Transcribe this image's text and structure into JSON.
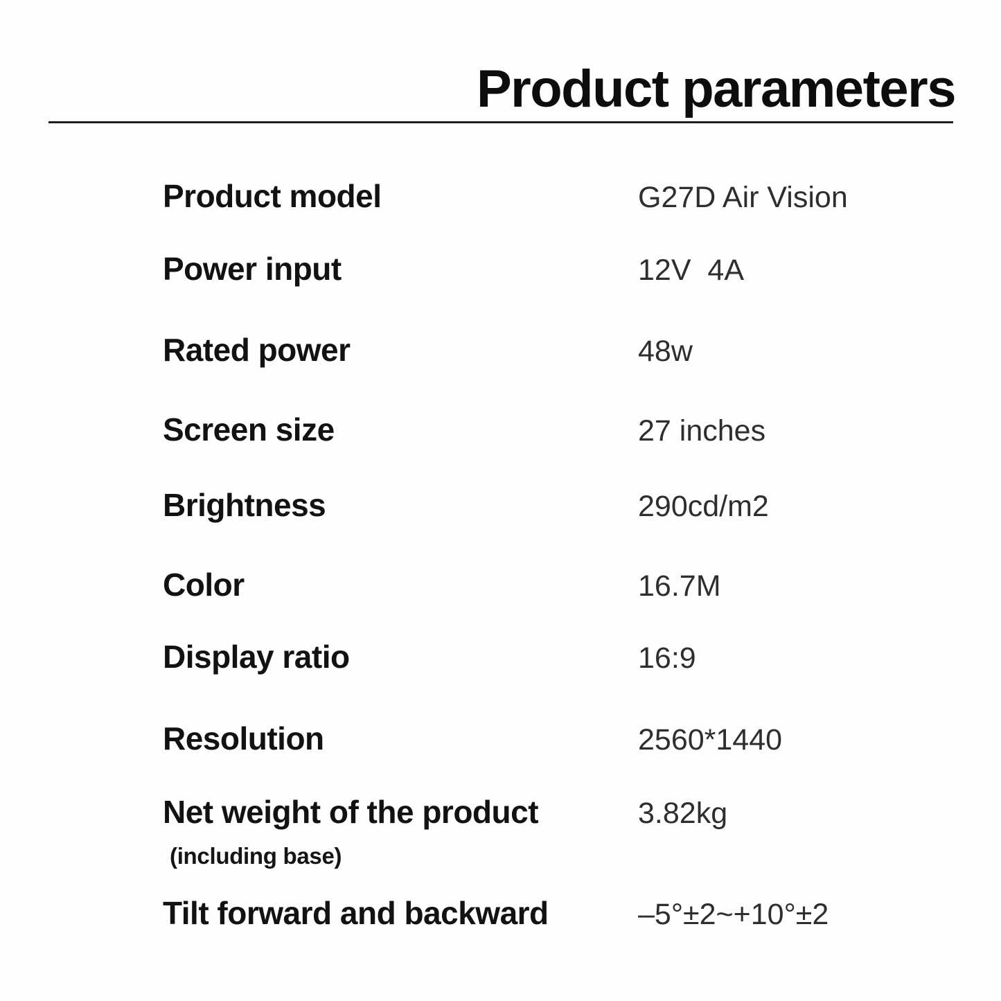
{
  "page": {
    "title": "Product parameters"
  },
  "colors": {
    "background": "#fefefe",
    "label_text": "#121212",
    "value_text": "#2e2e2e",
    "divider": "#1f1f1f"
  },
  "table": {
    "rows": [
      {
        "label": "Product model",
        "value": "G27D Air Vision"
      },
      {
        "label": "Power input",
        "value": "12V  4A"
      },
      {
        "label": "Rated power",
        "value": "48w"
      },
      {
        "label": "Screen size",
        "value": "27 inches"
      },
      {
        "label": "Brightness",
        "value": "290cd/m2"
      },
      {
        "label": "Color",
        "value": "16.7M"
      },
      {
        "label": "Display ratio",
        "value": "16:9"
      },
      {
        "label": "Resolution",
        "value": "2560*1440"
      },
      {
        "label": "Net weight of the product",
        "sublabel": "(including base)",
        "value": "3.82kg"
      },
      {
        "label": "Tilt forward and backward",
        "value": "–5°±2~+10°±2"
      }
    ]
  }
}
